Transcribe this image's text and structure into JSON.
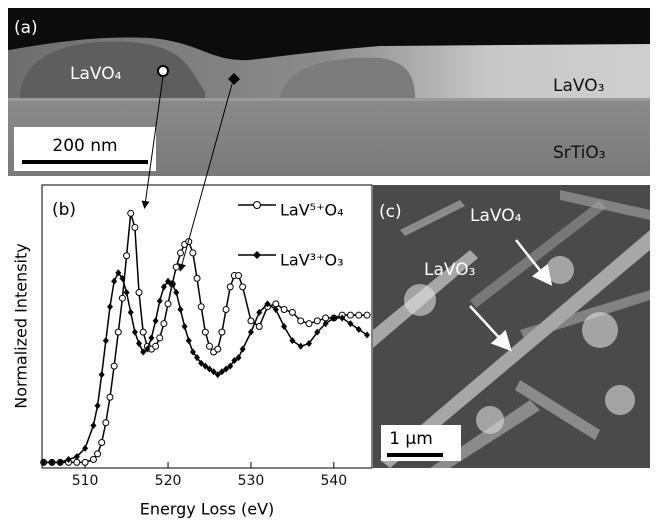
{
  "panel_a": {
    "label": "(a)",
    "phase_top": "LaVO₄",
    "phase_right": "LaVO₃",
    "substrate": "SrTiO₃",
    "scale_bar": "200 nm"
  },
  "chart_data": {
    "type": "line",
    "panel_label": "(b)",
    "x_label": "Energy Loss (eV)",
    "y_label": "Normalized Intensity",
    "x": [
      505,
      506,
      507,
      508,
      509,
      510,
      511,
      511.5,
      512,
      512.5,
      513,
      513.5,
      514,
      514.5,
      515,
      515.5,
      516,
      516.5,
      517,
      517.5,
      518,
      518.5,
      519,
      519.5,
      520,
      520.5,
      521,
      521.5,
      522,
      522.5,
      523,
      523.5,
      524,
      524.5,
      525,
      525.5,
      526,
      526.5,
      527,
      527.5,
      528,
      528.5,
      529,
      530,
      531,
      532,
      533,
      534,
      535,
      536,
      537,
      538,
      539,
      540,
      541,
      542,
      543,
      544
    ],
    "series": [
      {
        "name": "LaV⁵⁺O₄",
        "color": "#000000",
        "marker": "open-circle",
        "values": [
          0.02,
          0.02,
          0.02,
          0.02,
          0.02,
          0.02,
          0.03,
          0.05,
          0.09,
          0.16,
          0.25,
          0.36,
          0.48,
          0.6,
          0.75,
          0.9,
          0.85,
          0.62,
          0.48,
          0.43,
          0.42,
          0.43,
          0.46,
          0.51,
          0.58,
          0.65,
          0.71,
          0.76,
          0.79,
          0.8,
          0.76,
          0.67,
          0.57,
          0.48,
          0.43,
          0.41,
          0.42,
          0.48,
          0.56,
          0.64,
          0.68,
          0.68,
          0.64,
          0.52,
          0.5,
          0.57,
          0.58,
          0.56,
          0.55,
          0.52,
          0.51,
          0.52,
          0.53,
          0.53,
          0.54,
          0.54,
          0.54,
          0.54
        ]
      },
      {
        "name": "LaV³⁺O₃",
        "color": "#000000",
        "marker": "diamond",
        "values": [
          0.02,
          0.02,
          0.02,
          0.03,
          0.04,
          0.07,
          0.15,
          0.22,
          0.33,
          0.45,
          0.57,
          0.66,
          0.69,
          0.67,
          0.62,
          0.55,
          0.48,
          0.44,
          0.41,
          0.42,
          0.46,
          0.52,
          0.59,
          0.64,
          0.66,
          0.65,
          0.62,
          0.56,
          0.5,
          0.45,
          0.41,
          0.39,
          0.37,
          0.36,
          0.35,
          0.34,
          0.33,
          0.34,
          0.35,
          0.36,
          0.38,
          0.39,
          0.42,
          0.48,
          0.55,
          0.58,
          0.56,
          0.5,
          0.45,
          0.43,
          0.44,
          0.48,
          0.51,
          0.53,
          0.53,
          0.51,
          0.49,
          0.47
        ]
      }
    ],
    "xlim": [
      504.8,
      544.6
    ],
    "ylim": [
      0,
      1
    ],
    "xticks": [
      510,
      520,
      530,
      540
    ]
  },
  "panel_c": {
    "label": "(c)",
    "phase_upper": "LaVO₄",
    "phase_lower": "LaVO₃",
    "scale_bar": "1 µm"
  }
}
